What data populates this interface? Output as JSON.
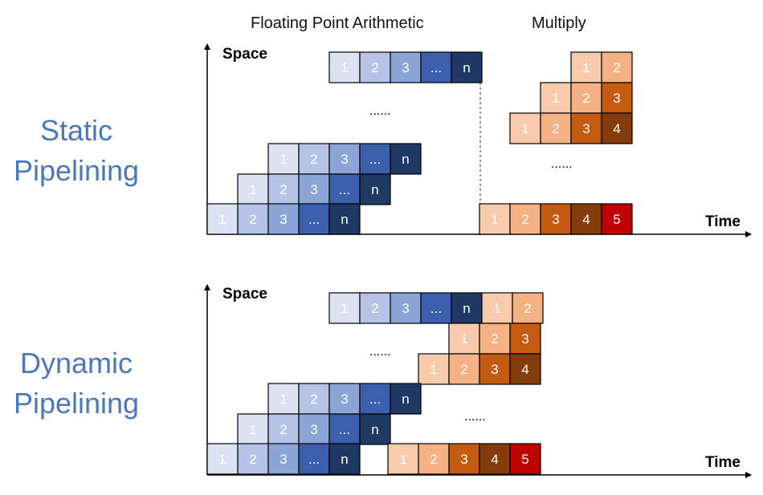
{
  "headers": {
    "floating_point": "Floating Point Arithmetic",
    "multiply": "Multiply"
  },
  "panels": [
    {
      "title_line1": "Static",
      "title_line2": "Pipelining",
      "y_axis_label": "Space",
      "x_axis_label": "Time",
      "ellipsis_labels": [
        "......",
        "......"
      ],
      "rows": [
        {
          "row_name": "fp-row-top",
          "cells": [
            {
              "text": "1",
              "color": "#dbe2f2",
              "text_color": "#ffffff"
            },
            {
              "text": "2",
              "color": "#b5c4e6",
              "text_color": "#ffffff"
            },
            {
              "text": "3",
              "color": "#8aa5d6",
              "text_color": "#ffffff"
            },
            {
              "text": "...",
              "color": "#3b5faa",
              "text_color": "#ffffff"
            },
            {
              "text": "n",
              "color": "#1f3864",
              "text_color": "#ffffff"
            }
          ]
        },
        {
          "row_name": "fp-row-2",
          "cells": [
            {
              "text": "1",
              "color": "#dbe2f2",
              "text_color": "#ffffff"
            },
            {
              "text": "2",
              "color": "#b5c4e6",
              "text_color": "#ffffff"
            },
            {
              "text": "3",
              "color": "#8aa5d6",
              "text_color": "#ffffff"
            },
            {
              "text": "...",
              "color": "#3b5faa",
              "text_color": "#ffffff"
            },
            {
              "text": "n",
              "color": "#1f3864",
              "text_color": "#ffffff"
            }
          ]
        },
        {
          "row_name": "fp-row-3",
          "cells": [
            {
              "text": "1",
              "color": "#dbe2f2",
              "text_color": "#ffffff"
            },
            {
              "text": "2",
              "color": "#b5c4e6",
              "text_color": "#ffffff"
            },
            {
              "text": "3",
              "color": "#8aa5d6",
              "text_color": "#ffffff"
            },
            {
              "text": "...",
              "color": "#3b5faa",
              "text_color": "#ffffff"
            },
            {
              "text": "n",
              "color": "#1f3864",
              "text_color": "#ffffff"
            }
          ]
        },
        {
          "row_name": "fp-row-bottom",
          "cells": [
            {
              "text": "1",
              "color": "#dbe2f2",
              "text_color": "#ffffff"
            },
            {
              "text": "2",
              "color": "#b5c4e6",
              "text_color": "#ffffff"
            },
            {
              "text": "3",
              "color": "#8aa5d6",
              "text_color": "#ffffff"
            },
            {
              "text": "...",
              "color": "#3b5faa",
              "text_color": "#ffffff"
            },
            {
              "text": "n",
              "color": "#1f3864",
              "text_color": "#ffffff"
            }
          ]
        },
        {
          "row_name": "mul-row-top",
          "cells": [
            {
              "text": "1",
              "color": "#f8cbad",
              "text_color": "#ffffff"
            },
            {
              "text": "2",
              "color": "#f4b183",
              "text_color": "#ffffff"
            }
          ]
        },
        {
          "row_name": "mul-row-2",
          "cells": [
            {
              "text": "1",
              "color": "#f8cbad",
              "text_color": "#ffffff"
            },
            {
              "text": "2",
              "color": "#f4b183",
              "text_color": "#ffffff"
            },
            {
              "text": "3",
              "color": "#c55a11",
              "text_color": "#ffffff"
            }
          ]
        },
        {
          "row_name": "mul-row-3",
          "cells": [
            {
              "text": "1",
              "color": "#f8cbad",
              "text_color": "#ffffff"
            },
            {
              "text": "2",
              "color": "#f4b183",
              "text_color": "#ffffff"
            },
            {
              "text": "3",
              "color": "#c55a11",
              "text_color": "#ffffff"
            },
            {
              "text": "4",
              "color": "#843c0c",
              "text_color": "#ffffff"
            }
          ]
        },
        {
          "row_name": "mul-row-bottom",
          "cells": [
            {
              "text": "1",
              "color": "#f8cbad",
              "text_color": "#ffffff"
            },
            {
              "text": "2",
              "color": "#f4b183",
              "text_color": "#ffffff"
            },
            {
              "text": "3",
              "color": "#c55a11",
              "text_color": "#ffffff"
            },
            {
              "text": "4",
              "color": "#843c0c",
              "text_color": "#ffffff"
            },
            {
              "text": "5",
              "color": "#c00000",
              "text_color": "#ffffff"
            }
          ]
        }
      ]
    },
    {
      "title_line1": "Dynamic",
      "title_line2": "Pipelining",
      "y_axis_label": "Space",
      "x_axis_label": "Time",
      "ellipsis_labels": [
        "......",
        "......"
      ],
      "rows": [
        {
          "row_name": "fp-row-top",
          "cells": [
            {
              "text": "1",
              "color": "#dbe2f2",
              "text_color": "#ffffff"
            },
            {
              "text": "2",
              "color": "#b5c4e6",
              "text_color": "#ffffff"
            },
            {
              "text": "3",
              "color": "#8aa5d6",
              "text_color": "#ffffff"
            },
            {
              "text": "...",
              "color": "#3b5faa",
              "text_color": "#ffffff"
            },
            {
              "text": "n",
              "color": "#1f3864",
              "text_color": "#ffffff"
            },
            {
              "text": "1",
              "color": "#f8cbad",
              "text_color": "#ffffff"
            },
            {
              "text": "2",
              "color": "#f4b183",
              "text_color": "#ffffff"
            }
          ]
        },
        {
          "row_name": "mul-row-2",
          "cells": [
            {
              "text": "1",
              "color": "#f8cbad",
              "text_color": "#ffffff"
            },
            {
              "text": "2",
              "color": "#f4b183",
              "text_color": "#ffffff"
            },
            {
              "text": "3",
              "color": "#c55a11",
              "text_color": "#ffffff"
            }
          ]
        },
        {
          "row_name": "mul-row-3",
          "cells": [
            {
              "text": "1",
              "color": "#f8cbad",
              "text_color": "#ffffff"
            },
            {
              "text": "2",
              "color": "#f4b183",
              "text_color": "#ffffff"
            },
            {
              "text": "3",
              "color": "#c55a11",
              "text_color": "#ffffff"
            },
            {
              "text": "4",
              "color": "#843c0c",
              "text_color": "#ffffff"
            }
          ]
        },
        {
          "row_name": "fp-row-2",
          "cells": [
            {
              "text": "1",
              "color": "#dbe2f2",
              "text_color": "#ffffff"
            },
            {
              "text": "2",
              "color": "#b5c4e6",
              "text_color": "#ffffff"
            },
            {
              "text": "3",
              "color": "#8aa5d6",
              "text_color": "#ffffff"
            },
            {
              "text": "...",
              "color": "#3b5faa",
              "text_color": "#ffffff"
            },
            {
              "text": "n",
              "color": "#1f3864",
              "text_color": "#ffffff"
            }
          ]
        },
        {
          "row_name": "fp-row-3",
          "cells": [
            {
              "text": "1",
              "color": "#dbe2f2",
              "text_color": "#ffffff"
            },
            {
              "text": "2",
              "color": "#b5c4e6",
              "text_color": "#ffffff"
            },
            {
              "text": "3",
              "color": "#8aa5d6",
              "text_color": "#ffffff"
            },
            {
              "text": "...",
              "color": "#3b5faa",
              "text_color": "#ffffff"
            },
            {
              "text": "n",
              "color": "#1f3864",
              "text_color": "#ffffff"
            }
          ]
        },
        {
          "row_name": "fp-row-bottom",
          "cells": [
            {
              "text": "1",
              "color": "#dbe2f2",
              "text_color": "#ffffff"
            },
            {
              "text": "2",
              "color": "#b5c4e6",
              "text_color": "#ffffff"
            },
            {
              "text": "3",
              "color": "#8aa5d6",
              "text_color": "#ffffff"
            },
            {
              "text": "...",
              "color": "#3b5faa",
              "text_color": "#ffffff"
            },
            {
              "text": "n",
              "color": "#1f3864",
              "text_color": "#ffffff"
            }
          ]
        },
        {
          "row_name": "mul-row-bottom",
          "cells": [
            {
              "text": "1",
              "color": "#f8cbad",
              "text_color": "#ffffff"
            },
            {
              "text": "2",
              "color": "#f4b183",
              "text_color": "#ffffff"
            },
            {
              "text": "3",
              "color": "#c55a11",
              "text_color": "#ffffff"
            },
            {
              "text": "4",
              "color": "#843c0c",
              "text_color": "#ffffff"
            },
            {
              "text": "5",
              "color": "#c00000",
              "text_color": "#ffffff"
            }
          ]
        }
      ]
    }
  ],
  "colors": {
    "title_blue": "#4a78bd",
    "axis": "#000000",
    "cell_border": "#000000",
    "dashed_line": "#555555"
  }
}
